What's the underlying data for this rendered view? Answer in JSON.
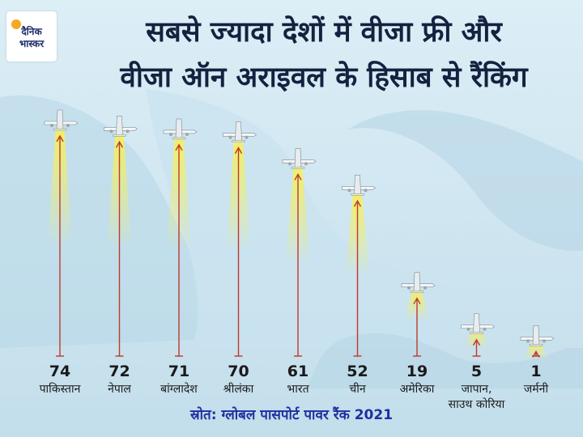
{
  "logo": {
    "line1": "दैनिक",
    "line2": "भास्कर"
  },
  "chart_data": {
    "type": "bar",
    "title_line1": "सबसे ज्यादा देशों में वीजा फ्री और",
    "title_line2": "वीजा ऑन अराइवल के हिसाब से रैंकिंग",
    "source": "स्रोत: ग्लोबल पासपोर्ट पावर रैंक 2021",
    "xlabel": "",
    "ylabel": "",
    "categories": [
      [
        "पाकिस्तान"
      ],
      [
        "नेपाल"
      ],
      [
        "बांग्लादेश"
      ],
      [
        "श्रीलंका"
      ],
      [
        "भारत"
      ],
      [
        "चीन"
      ],
      [
        "अमेरिका"
      ],
      [
        "जापान,",
        "साउथ कोरिया"
      ],
      [
        "जर्मनी"
      ]
    ],
    "values": [
      74,
      72,
      71,
      70,
      61,
      52,
      19,
      5,
      1
    ],
    "ylim": [
      0,
      74
    ],
    "grid": false,
    "colors": {
      "arrow": "#c0392b",
      "beam": "#f3ec4a",
      "text": "#14213f",
      "source": "#1f2fa0"
    }
  }
}
